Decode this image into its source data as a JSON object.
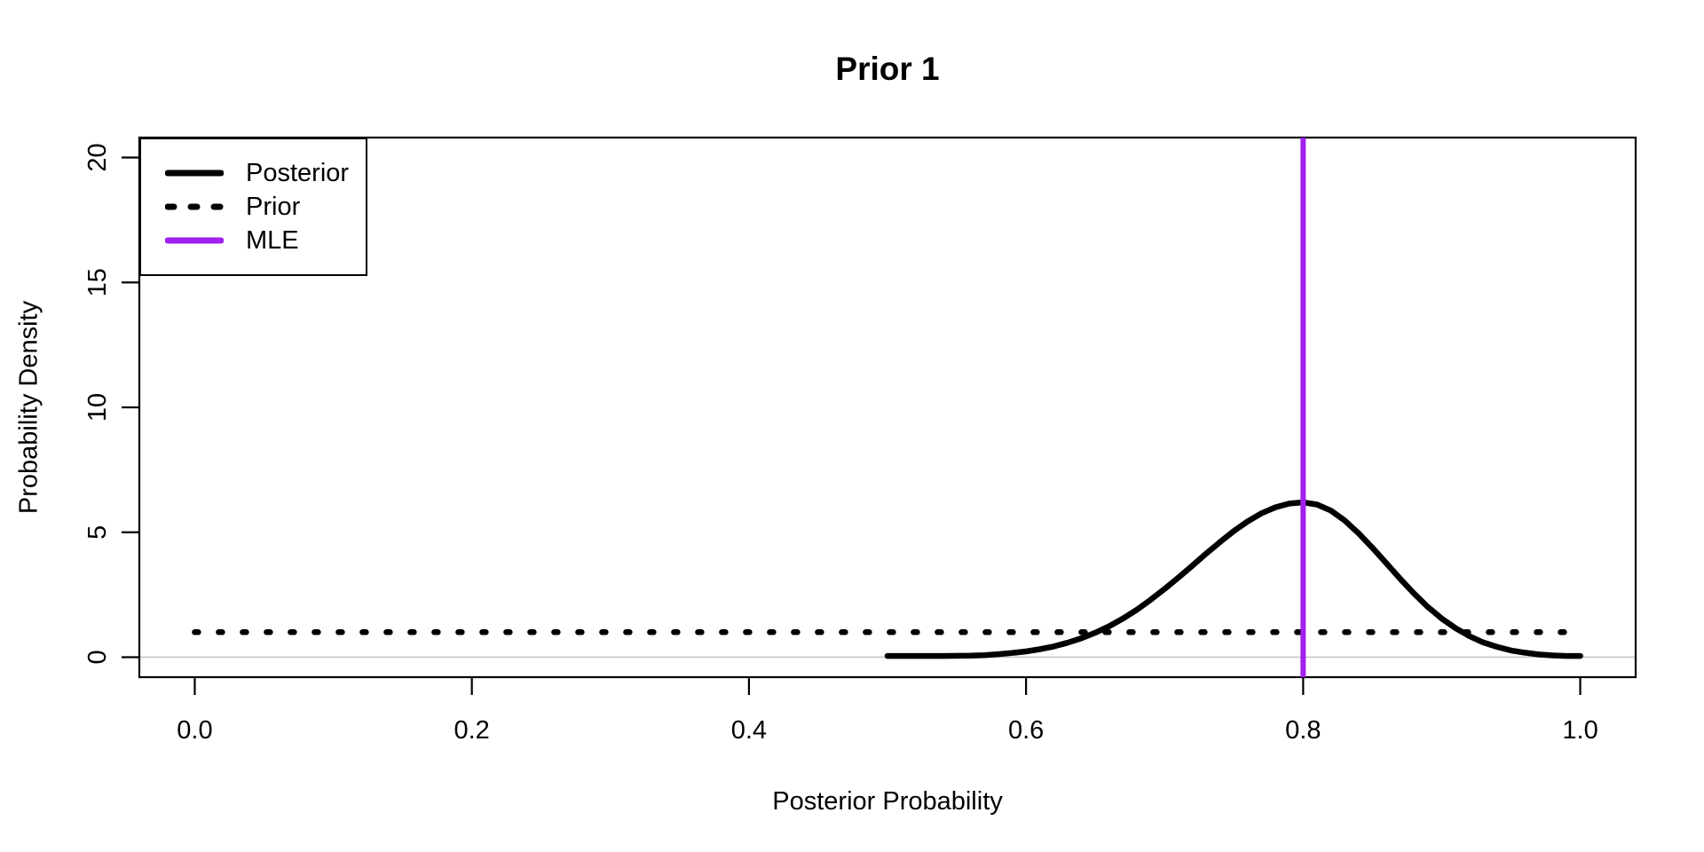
{
  "title": "Prior 1",
  "colors": {
    "posterior": "#000000",
    "prior": "#000000",
    "mle": "#A020F0",
    "zero_line": "#C6C6C6",
    "box": "#000000",
    "text": "#000000",
    "background": "#FFFFFF"
  },
  "chart_data": {
    "type": "line",
    "title": "Prior 1",
    "xlabel": "Posterior Probability",
    "ylabel": "Probability Density",
    "xlim": [
      0,
      1
    ],
    "ylim": [
      0,
      20
    ],
    "grid": false,
    "legend_position": "topleft",
    "x_ticks": [
      {
        "v": 0.0,
        "label": "0.0"
      },
      {
        "v": 0.2,
        "label": "0.2"
      },
      {
        "v": 0.4,
        "label": "0.4"
      },
      {
        "v": 0.6,
        "label": "0.6"
      },
      {
        "v": 0.8,
        "label": "0.8"
      },
      {
        "v": 1.0,
        "label": "1.0"
      }
    ],
    "y_ticks": [
      {
        "v": 0,
        "label": "0"
      },
      {
        "v": 5,
        "label": "5"
      },
      {
        "v": 10,
        "label": "10"
      },
      {
        "v": 15,
        "label": "15"
      },
      {
        "v": 20,
        "label": "20"
      }
    ],
    "zero_line": true,
    "series": [
      {
        "name": "Posterior",
        "style": "solid",
        "color": "#000000",
        "points": [
          [
            0.5,
            0.05
          ],
          [
            0.52,
            0.05
          ],
          [
            0.54,
            0.05
          ],
          [
            0.56,
            0.06
          ],
          [
            0.57,
            0.08
          ],
          [
            0.58,
            0.12
          ],
          [
            0.59,
            0.17
          ],
          [
            0.6,
            0.23
          ],
          [
            0.61,
            0.32
          ],
          [
            0.62,
            0.43
          ],
          [
            0.63,
            0.58
          ],
          [
            0.64,
            0.76
          ],
          [
            0.65,
            0.98
          ],
          [
            0.66,
            1.24
          ],
          [
            0.67,
            1.55
          ],
          [
            0.68,
            1.9
          ],
          [
            0.69,
            2.3
          ],
          [
            0.7,
            2.73
          ],
          [
            0.71,
            3.19
          ],
          [
            0.72,
            3.66
          ],
          [
            0.73,
            4.15
          ],
          [
            0.74,
            4.61
          ],
          [
            0.75,
            5.05
          ],
          [
            0.76,
            5.44
          ],
          [
            0.77,
            5.76
          ],
          [
            0.78,
            6.0
          ],
          [
            0.79,
            6.15
          ],
          [
            0.8,
            6.2
          ],
          [
            0.81,
            6.11
          ],
          [
            0.82,
            5.87
          ],
          [
            0.83,
            5.47
          ],
          [
            0.84,
            4.96
          ],
          [
            0.85,
            4.38
          ],
          [
            0.86,
            3.76
          ],
          [
            0.87,
            3.14
          ],
          [
            0.88,
            2.55
          ],
          [
            0.89,
            2.01
          ],
          [
            0.9,
            1.55
          ],
          [
            0.91,
            1.16
          ],
          [
            0.92,
            0.84
          ],
          [
            0.93,
            0.59
          ],
          [
            0.94,
            0.41
          ],
          [
            0.95,
            0.27
          ],
          [
            0.96,
            0.18
          ],
          [
            0.97,
            0.11
          ],
          [
            0.98,
            0.07
          ],
          [
            0.99,
            0.05
          ],
          [
            1.0,
            0.05
          ]
        ]
      },
      {
        "name": "Prior",
        "style": "dotted",
        "color": "#000000",
        "points": [
          [
            0.0,
            1.0
          ],
          [
            1.0,
            1.0
          ]
        ]
      },
      {
        "name": "MLE",
        "style": "vline",
        "color": "#A020F0",
        "x": 0.8
      }
    ]
  }
}
